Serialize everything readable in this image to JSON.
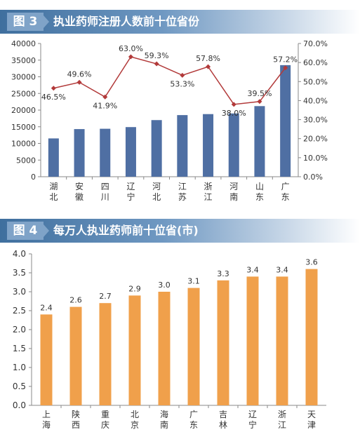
{
  "figure3": {
    "tag": "图 3",
    "title": "执业药师注册人数前十位省份",
    "chart_data": {
      "type": "bar",
      "categories": [
        "湖北",
        "安徽",
        "四川",
        "辽宁",
        "河北",
        "江苏",
        "浙江",
        "河南",
        "山东",
        "广东"
      ],
      "series": [
        {
          "values": [
            11500,
            14300,
            14400,
            14900,
            17000,
            18500,
            18800,
            19000,
            21200,
            33500
          ]
        },
        {
          "values": [
            46.5,
            49.6,
            41.9,
            63.0,
            59.3,
            53.3,
            57.8,
            38.0,
            39.5,
            57.2
          ]
        }
      ],
      "point_labels": [
        "46.5%",
        "49.6%",
        "41.9%",
        "63.0%",
        "59.3%",
        "53.3%",
        "57.8%",
        "38.0%",
        "39.5%",
        "57.2%"
      ],
      "ylim": [
        0,
        40000
      ],
      "y2lim": [
        0,
        70
      ],
      "y_ticks": [
        "0",
        "5000",
        "10000",
        "15000",
        "20000",
        "25000",
        "30000",
        "35000",
        "40000"
      ],
      "y2_ticks": [
        "0.0%",
        "10.0%",
        "20.0%",
        "30.0%",
        "40.0%",
        "50.0%",
        "60.0%",
        "70.0%"
      ],
      "bar_color": "#4f6fa3",
      "line_color": "#b23a3a",
      "grid": false
    }
  },
  "figure4": {
    "tag": "图 4",
    "title": "每万人执业药师前十位省(市)",
    "chart_data": {
      "type": "bar",
      "categories": [
        "上海",
        "陕西",
        "重庆",
        "北京",
        "海南",
        "广东",
        "吉林",
        "辽宁",
        "浙江",
        "天津"
      ],
      "values": [
        2.4,
        2.6,
        2.7,
        2.9,
        3.0,
        3.1,
        3.3,
        3.4,
        3.4,
        3.6
      ],
      "value_labels": [
        "2.4",
        "2.6",
        "2.7",
        "2.9",
        "3.0",
        "3.1",
        "3.3",
        "3.4",
        "3.4",
        "3.6"
      ],
      "ylim": [
        0,
        4.0
      ],
      "y_ticks": [
        "0.0",
        "0.5",
        "1.0",
        "1.5",
        "2.0",
        "2.5",
        "3.0",
        "3.5",
        "4.0"
      ],
      "bar_color": "#f0a04b",
      "grid": false
    }
  }
}
